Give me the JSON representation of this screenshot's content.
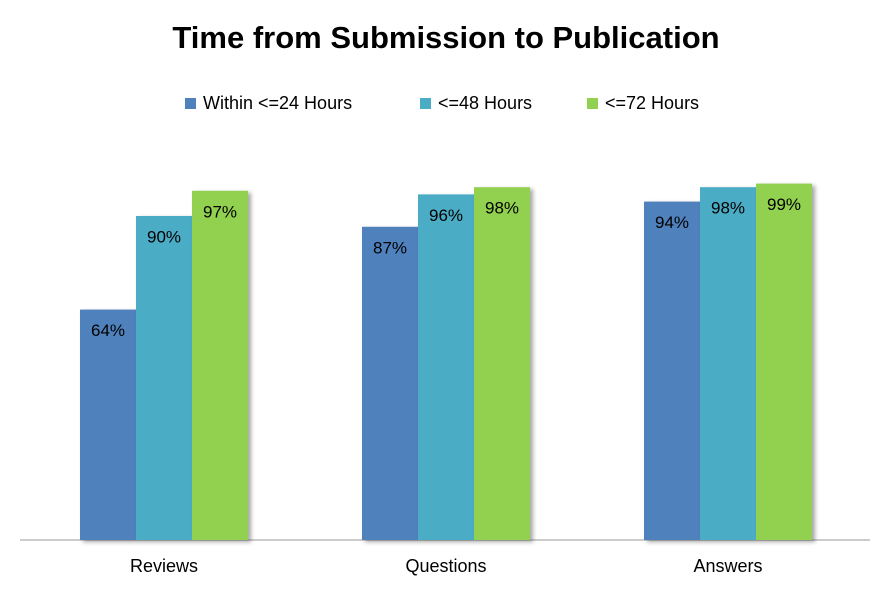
{
  "chart_data": {
    "type": "bar",
    "title": "Time from Submission to Publication",
    "categories": [
      "Reviews",
      "Questions",
      "Answers"
    ],
    "series": [
      {
        "name": "Within <=24 Hours",
        "color": "#4f81bd",
        "values": [
          64,
          87,
          94
        ],
        "value_labels": [
          "64%",
          "87%",
          "94%"
        ]
      },
      {
        "name": "<=48 Hours",
        "color": "#4bacc6",
        "values": [
          90,
          96,
          98
        ],
        "value_labels": [
          "90%",
          "96%",
          "98%"
        ]
      },
      {
        "name": "<=72 Hours",
        "color": "#92d050",
        "values": [
          97,
          98,
          99
        ],
        "value_labels": [
          "97%",
          "98%",
          "99%"
        ]
      }
    ],
    "ylim": [
      0,
      100
    ],
    "legend": "top"
  }
}
